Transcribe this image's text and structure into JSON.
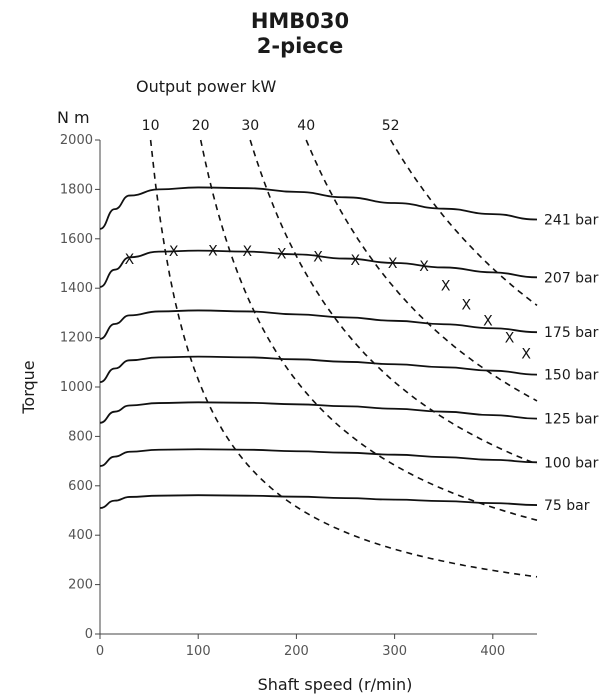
{
  "chart_data": {
    "type": "line",
    "title": "HMB030",
    "subtitle": "2-piece",
    "xlabel": "Shaft speed (r/min)",
    "ylabel": "Torque",
    "y_unit": "N m",
    "top_axis_label": "Output power kW",
    "xlim": [
      0,
      445
    ],
    "ylim": [
      0,
      2000
    ],
    "x_ticks": [
      0,
      100,
      200,
      300,
      400
    ],
    "y_ticks": [
      0,
      200,
      400,
      600,
      800,
      1000,
      1200,
      1400,
      1600,
      1800,
      2000
    ],
    "grid": false,
    "pressure_series": [
      {
        "name": "241 bar",
        "x": [
          0,
          15,
          30,
          60,
          100,
          150,
          200,
          250,
          300,
          350,
          400,
          445
        ],
        "y": [
          1640,
          1720,
          1775,
          1800,
          1808,
          1805,
          1790,
          1768,
          1745,
          1722,
          1700,
          1678
        ]
      },
      {
        "name": "207 bar",
        "x": [
          0,
          15,
          30,
          60,
          100,
          150,
          200,
          250,
          300,
          350,
          400,
          445
        ],
        "y": [
          1405,
          1475,
          1525,
          1548,
          1552,
          1548,
          1537,
          1520,
          1502,
          1484,
          1464,
          1444
        ]
      },
      {
        "name": "175 bar",
        "x": [
          0,
          15,
          30,
          60,
          100,
          150,
          200,
          250,
          300,
          350,
          400,
          445
        ],
        "y": [
          1195,
          1255,
          1290,
          1306,
          1310,
          1306,
          1294,
          1282,
          1268,
          1254,
          1238,
          1222
        ]
      },
      {
        "name": "150 bar",
        "x": [
          0,
          15,
          30,
          60,
          100,
          150,
          200,
          250,
          300,
          350,
          400,
          445
        ],
        "y": [
          1020,
          1075,
          1108,
          1120,
          1123,
          1120,
          1112,
          1102,
          1092,
          1080,
          1066,
          1050
        ]
      },
      {
        "name": "125 bar",
        "x": [
          0,
          15,
          30,
          60,
          100,
          150,
          200,
          250,
          300,
          350,
          400,
          445
        ],
        "y": [
          855,
          900,
          925,
          935,
          938,
          936,
          930,
          922,
          912,
          900,
          886,
          872
        ]
      },
      {
        "name": "100 bar",
        "x": [
          0,
          15,
          30,
          60,
          100,
          150,
          200,
          250,
          300,
          350,
          400,
          445
        ],
        "y": [
          680,
          718,
          738,
          746,
          748,
          746,
          740,
          734,
          726,
          716,
          705,
          695
        ]
      },
      {
        "name": "75 bar",
        "x": [
          0,
          15,
          30,
          60,
          100,
          150,
          200,
          250,
          300,
          350,
          400,
          445
        ],
        "y": [
          510,
          540,
          555,
          560,
          562,
          560,
          556,
          550,
          544,
          538,
          530,
          522
        ]
      }
    ],
    "power_series": [
      {
        "name": "10",
        "kw": 10
      },
      {
        "name": "20",
        "kw": 20
      },
      {
        "name": "30",
        "kw": 30
      },
      {
        "name": "40",
        "kw": 40
      },
      {
        "name": "52",
        "kw": 52
      }
    ],
    "markers": {
      "symbol": "X",
      "x": [
        30,
        75,
        115,
        150,
        185,
        222,
        260,
        298,
        330,
        352,
        373,
        395,
        417,
        434
      ],
      "y": [
        1518,
        1550,
        1552,
        1550,
        1540,
        1528,
        1515,
        1502,
        1490,
        1410,
        1335,
        1270,
        1200,
        1135
      ]
    }
  }
}
